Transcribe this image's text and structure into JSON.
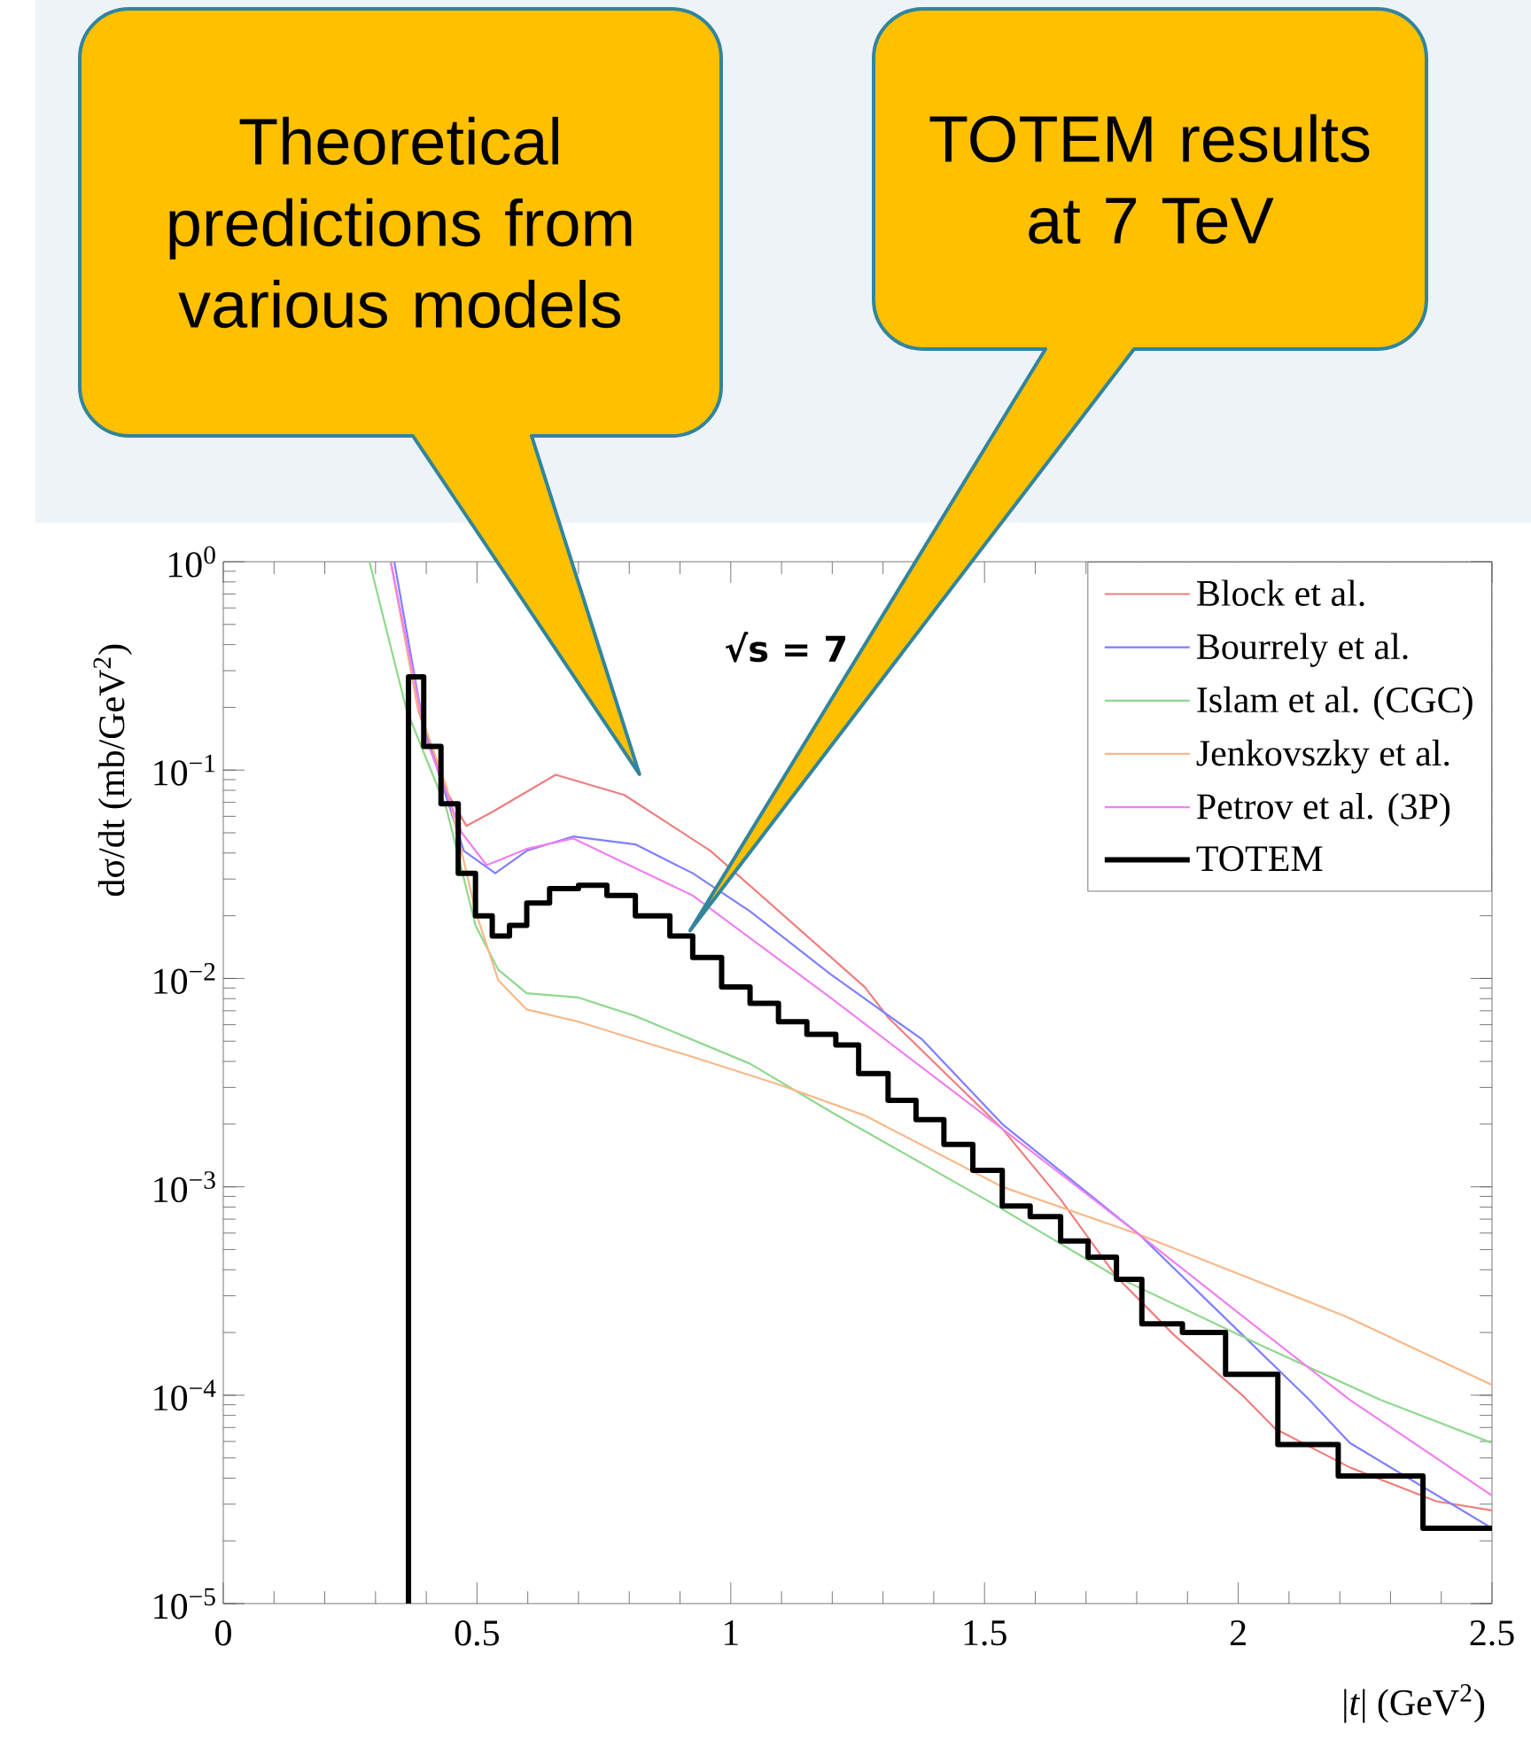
{
  "chart_data": {
    "type": "line",
    "xlabel": "|*t*|   (GeV$^{2}$)",
    "ylabel": "dσ/dt   (mb/GeV$^{2}$)",
    "log": "y",
    "legend": "top right",
    "xlim": [
      0,
      2.5
    ],
    "xticks": [
      0,
      0.5,
      1,
      1.5,
      2,
      2.5
    ],
    "ylim": [
      1e-05,
      1
    ],
    "yticks": [
      {
        "value": 1e-05,
        "label": "10$^{−5}$"
      },
      {
        "value": 0.0001,
        "label": "10$^{−4}$"
      },
      {
        "value": 0.001,
        "label": "10$^{−3}$"
      },
      {
        "value": 0.01,
        "label": "10$^{−2}$"
      },
      {
        "value": 0.1,
        "label": "10$^{−1}$"
      },
      {
        "value": 1,
        "label": "10$^{0}$"
      }
    ],
    "series": [
      {
        "name": "Block et al.",
        "color": "#ee7f7f",
        "x": [
          0.33,
          0.384,
          0.44,
          0.479,
          0.53,
          0.655,
          0.79,
          0.96,
          1.264,
          1.31,
          1.535,
          1.65,
          1.76,
          1.873,
          2.008,
          2.073,
          2.22,
          2.39,
          2.5
        ],
        "values": [
          1.0,
          0.195,
          0.079,
          0.054,
          0.063,
          0.095,
          0.076,
          0.041,
          0.0091,
          0.0065,
          0.0019,
          0.00087,
          0.00037,
          0.000195,
          0.0001,
          6.9e-05,
          4.5e-05,
          3.1e-05,
          2.8e-05
        ]
      },
      {
        "name": "Bourrely et al.",
        "color": "#7f7fff",
        "x": [
          0.337,
          0.395,
          0.474,
          0.536,
          0.598,
          0.689,
          0.812,
          0.925,
          1.038,
          1.196,
          1.377,
          1.535,
          1.805,
          2.008,
          2.14,
          2.22,
          2.5
        ],
        "values": [
          1.0,
          0.16,
          0.041,
          0.032,
          0.041,
          0.048,
          0.044,
          0.032,
          0.021,
          0.0105,
          0.0051,
          0.002,
          0.00059,
          0.000195,
          9.5e-05,
          5.9e-05,
          2.3e-05
        ]
      },
      {
        "name": "Islam et al.  (CGC)",
        "color": "#8fd88f",
        "x": [
          0.288,
          0.361,
          0.44,
          0.497,
          0.542,
          0.598,
          0.7,
          0.812,
          1.038,
          1.196,
          1.524,
          1.76,
          2.053,
          2.28,
          2.5
        ],
        "values": [
          1.0,
          0.195,
          0.065,
          0.018,
          0.011,
          0.0085,
          0.0081,
          0.0066,
          0.0039,
          0.0023,
          0.00081,
          0.00037,
          0.00017,
          9.5e-05,
          5.9e-05
        ]
      },
      {
        "name": "Jenkovszky et al.",
        "color": "#f8b888",
        "x": [
          0.33,
          0.384,
          0.44,
          0.497,
          0.542,
          0.598,
          0.7,
          0.812,
          0.925,
          1.094,
          1.264,
          1.535,
          1.805,
          2.21,
          2.5
        ],
        "values": [
          1.0,
          0.2,
          0.083,
          0.021,
          0.0098,
          0.0071,
          0.0062,
          0.0051,
          0.0042,
          0.0031,
          0.0022,
          0.001,
          0.00059,
          0.00024,
          0.000112
        ]
      },
      {
        "name": "Petrov et al.  (3P)",
        "color": "#f080f0",
        "x": [
          0.33,
          0.4,
          0.47,
          0.519,
          0.6,
          0.689,
          0.925,
          1.196,
          1.535,
          1.805,
          2.008,
          2.22,
          2.5
        ],
        "values": [
          1.0,
          0.14,
          0.05,
          0.035,
          0.042,
          0.047,
          0.025,
          0.0081,
          0.0019,
          0.00059,
          0.00024,
          9.5e-05,
          3.3e-05
        ]
      },
      {
        "name": "TOTEM",
        "color": "#000000",
        "type": "step",
        "x": [
          0.36,
          0.365,
          0.395,
          0.429,
          0.463,
          0.497,
          0.53,
          0.564,
          0.598,
          0.643,
          0.7,
          0.756,
          0.812,
          0.88,
          0.925,
          0.982,
          1.038,
          1.094,
          1.15,
          1.207,
          1.252,
          1.31,
          1.365,
          1.42,
          1.477,
          1.535,
          1.59,
          1.65,
          1.704,
          1.76,
          1.81,
          1.89,
          1.975,
          2.078,
          2.197,
          2.364,
          2.5
        ],
        "values": [
          1e-05,
          0.28,
          0.13,
          0.069,
          0.032,
          0.02,
          0.016,
          0.018,
          0.023,
          0.027,
          0.028,
          0.025,
          0.02,
          0.016,
          0.0126,
          0.0091,
          0.0076,
          0.0062,
          0.0054,
          0.0048,
          0.0035,
          0.0026,
          0.0021,
          0.0016,
          0.0012,
          0.00081,
          0.00072,
          0.00055,
          0.00046,
          0.00036,
          0.00022,
          0.0002,
          0.000126,
          5.8e-05,
          4.1e-05,
          2.3e-05,
          2.3e-05
        ]
      }
    ],
    "annotations": [
      "Theoretical predictions from various models",
      "TOTEM results at 7 TeV",
      "√s = 7"
    ]
  }
}
